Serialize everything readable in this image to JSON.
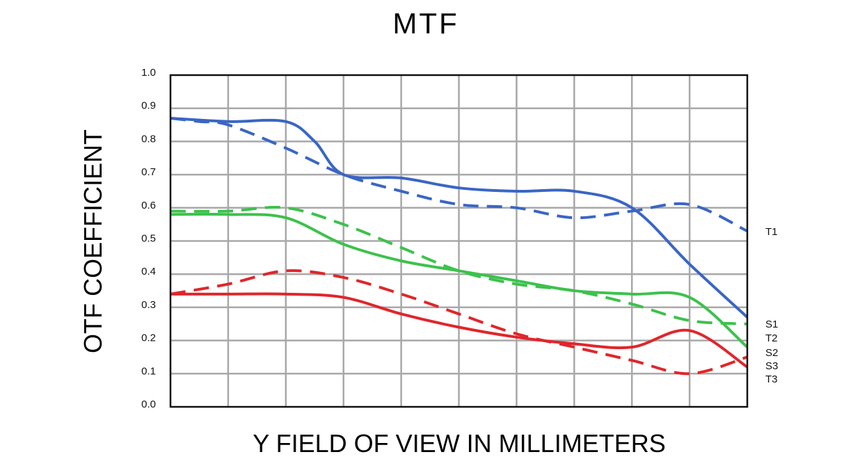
{
  "chart_data": {
    "type": "line",
    "title": "MTF",
    "xlabel": "Y FIELD OF VIEW IN MILLIMETERS",
    "ylabel": "OTF COEFFICIENT",
    "xlim": [
      0,
      10
    ],
    "ylim": [
      0,
      1
    ],
    "yticks": [
      "0.0",
      "0.1",
      "0.2",
      "0.3",
      "0.4",
      "0.5",
      "0.6",
      "0.7",
      "0.8",
      "0.9",
      "1.0"
    ],
    "grid": true,
    "end_labels": [
      "T1",
      "S1",
      "T2",
      "S2",
      "S3",
      "T3"
    ],
    "series": [
      {
        "color": "#3a66c4",
        "dash": true,
        "x": [
          0,
          0.5,
          1,
          2,
          3,
          4,
          5,
          6,
          7,
          8,
          9,
          10
        ],
        "y": [
          0.87,
          0.86,
          0.85,
          0.78,
          0.7,
          0.65,
          0.61,
          0.6,
          0.57,
          0.59,
          0.61,
          0.53
        ]
      },
      {
        "color": "#3a66c4",
        "dash": false,
        "x": [
          0,
          1,
          2,
          2.5,
          3,
          4,
          5,
          6,
          7,
          8,
          9,
          10
        ],
        "y": [
          0.87,
          0.86,
          0.86,
          0.8,
          0.7,
          0.69,
          0.66,
          0.65,
          0.65,
          0.6,
          0.43,
          0.27
        ]
      },
      {
        "color": "#3cc24c",
        "dash": true,
        "x": [
          0,
          1,
          2,
          3,
          4,
          5,
          6,
          7,
          8,
          9,
          10
        ],
        "y": [
          0.59,
          0.59,
          0.6,
          0.55,
          0.48,
          0.41,
          0.37,
          0.35,
          0.31,
          0.26,
          0.25
        ]
      },
      {
        "color": "#3cc24c",
        "dash": false,
        "x": [
          0,
          1,
          2,
          3,
          4,
          5,
          6,
          7,
          8,
          9,
          10
        ],
        "y": [
          0.58,
          0.58,
          0.57,
          0.49,
          0.44,
          0.41,
          0.38,
          0.35,
          0.34,
          0.33,
          0.18
        ]
      },
      {
        "color": "#e0262b",
        "dash": true,
        "x": [
          0,
          1,
          2,
          3,
          4,
          5,
          6,
          7,
          8,
          9,
          10
        ],
        "y": [
          0.34,
          0.37,
          0.41,
          0.39,
          0.34,
          0.28,
          0.22,
          0.18,
          0.14,
          0.1,
          0.15
        ]
      },
      {
        "color": "#e0262b",
        "dash": false,
        "x": [
          0,
          1,
          2,
          3,
          4,
          5,
          6,
          7,
          8,
          9,
          10
        ],
        "y": [
          0.34,
          0.34,
          0.34,
          0.33,
          0.28,
          0.24,
          0.21,
          0.19,
          0.18,
          0.23,
          0.12
        ]
      }
    ]
  }
}
